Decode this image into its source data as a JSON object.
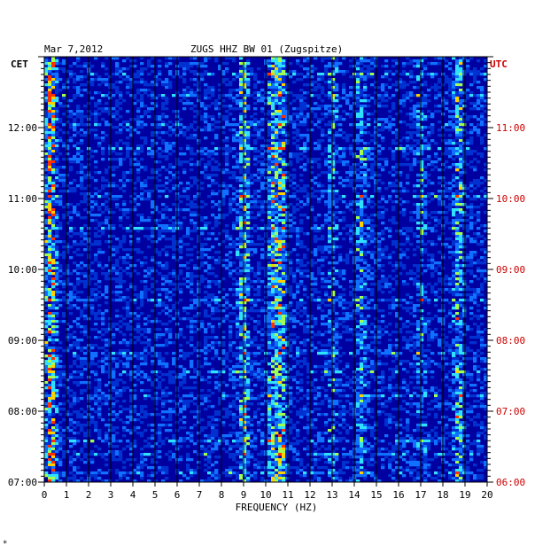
{
  "chart_data": {
    "type": "heatmap",
    "date": "Mar 7,2012",
    "title": "ZUGS HHZ BW 01 (Zugspitze)",
    "left_tz": "CET",
    "right_tz": "UTC",
    "xlabel": "FREQUENCY (HZ)",
    "x_ticks": [
      "0",
      "1",
      "2",
      "3",
      "4",
      "5",
      "6",
      "7",
      "8",
      "9",
      "10",
      "11",
      "12",
      "13",
      "14",
      "15",
      "16",
      "17",
      "18",
      "19",
      "20"
    ],
    "xlim": [
      0,
      20
    ],
    "left_ticks": [
      "12:00",
      "11:00",
      "10:00",
      "09:00",
      "08:00",
      "07:00"
    ],
    "right_ticks": [
      "11:00",
      "10:00",
      "09:00",
      "08:00",
      "07:00",
      "06:00"
    ],
    "ylim_cet": [
      "07:00",
      "13:00"
    ],
    "colors": {
      "left_axis": "#000000",
      "right_axis": "#cc0000",
      "background": "#0000a0"
    },
    "bands_hz": [
      {
        "hz": 0.3,
        "intensity": 0.9
      },
      {
        "hz": 9.0,
        "intensity": 0.6
      },
      {
        "hz": 10.3,
        "intensity": 0.55
      },
      {
        "hz": 10.7,
        "intensity": 0.7
      },
      {
        "hz": 13.0,
        "intensity": 0.35
      },
      {
        "hz": 14.3,
        "intensity": 0.45
      },
      {
        "hz": 17.0,
        "intensity": 0.3
      },
      {
        "hz": 18.7,
        "intensity": 0.55
      }
    ]
  },
  "footnote": "*"
}
